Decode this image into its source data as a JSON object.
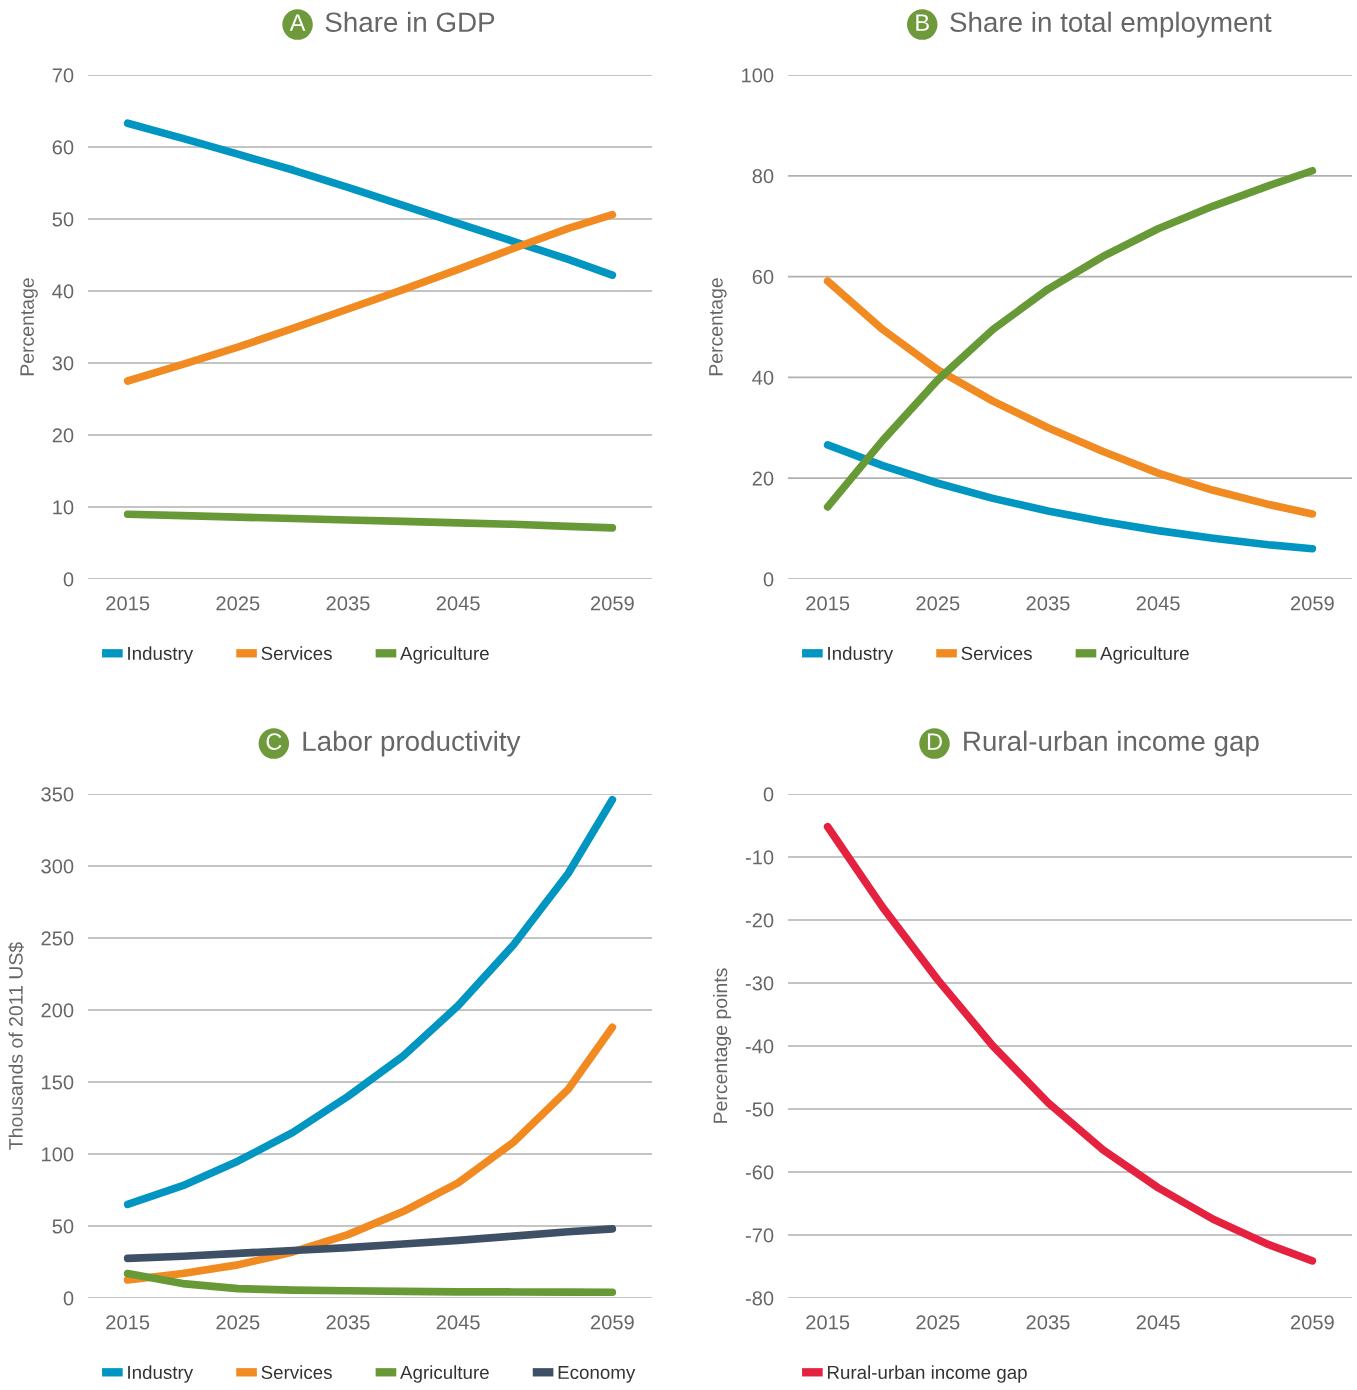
{
  "chart_data": [
    {
      "type": "line",
      "title": "A Share in GDP",
      "ylabel": "Percentage",
      "x": [
        2015,
        2020,
        2025,
        2030,
        2035,
        2040,
        2045,
        2050,
        2055,
        2059
      ],
      "xlim": [
        2011.4,
        2062.6
      ],
      "xticks": [
        2015,
        2025,
        2035,
        2045,
        2059
      ],
      "ylim": [
        0,
        70
      ],
      "yticks": [
        0,
        10,
        20,
        30,
        40,
        50,
        60,
        70
      ],
      "grid": "y",
      "legend": "bottom",
      "series": [
        {
          "name": "Industry",
          "color": "#0096c1",
          "values": [
            63.3,
            61.2,
            59.0,
            56.8,
            54.4,
            51.9,
            49.4,
            46.9,
            44.4,
            42.2
          ]
        },
        {
          "name": "Services",
          "color": "#f08a21",
          "values": [
            27.5,
            29.8,
            32.2,
            34.8,
            37.5,
            40.2,
            43.0,
            45.9,
            48.7,
            50.6
          ]
        },
        {
          "name": "Agriculture",
          "color": "#679a37",
          "values": [
            9.0,
            8.8,
            8.6,
            8.4,
            8.2,
            8.0,
            7.8,
            7.6,
            7.3,
            7.1
          ]
        }
      ]
    },
    {
      "type": "line",
      "title": "B Share in total employment",
      "ylabel": "Percentage",
      "x": [
        2015,
        2020,
        2025,
        2030,
        2035,
        2040,
        2045,
        2050,
        2055,
        2059
      ],
      "xlim": [
        2011.4,
        2062.6
      ],
      "xticks": [
        2015,
        2025,
        2035,
        2045,
        2059
      ],
      "ylim": [
        0,
        100
      ],
      "yticks": [
        0,
        20,
        40,
        60,
        80,
        100
      ],
      "grid": "y",
      "legend": "bottom",
      "series": [
        {
          "name": "Industry",
          "color": "#0096c1",
          "values": [
            26.6,
            22.5,
            19.0,
            16.0,
            13.5,
            11.4,
            9.6,
            8.1,
            6.8,
            6.0
          ]
        },
        {
          "name": "Services",
          "color": "#f08a21",
          "values": [
            59.1,
            49.5,
            41.5,
            35.3,
            30.0,
            25.3,
            21.0,
            17.6,
            14.8,
            12.9
          ]
        },
        {
          "name": "Agriculture",
          "color": "#679a37",
          "values": [
            14.3,
            27.5,
            39.5,
            49.5,
            57.5,
            64.0,
            69.5,
            74.0,
            78.0,
            81.0
          ]
        }
      ]
    },
    {
      "type": "line",
      "title": "C Labor productivity",
      "ylabel": "Thousands of 2011 US$",
      "x": [
        2015,
        2020,
        2025,
        2030,
        2035,
        2040,
        2045,
        2050,
        2055,
        2059
      ],
      "xlim": [
        2011.4,
        2062.6
      ],
      "xticks": [
        2015,
        2025,
        2035,
        2045,
        2059
      ],
      "ylim": [
        0,
        350
      ],
      "yticks": [
        0,
        50,
        100,
        150,
        200,
        250,
        300,
        350
      ],
      "grid": "y",
      "legend": "bottom",
      "series": [
        {
          "name": "Industry",
          "color": "#0096c1",
          "values": [
            65,
            78,
            95,
            115,
            140,
            168,
            203,
            245,
            295,
            346
          ]
        },
        {
          "name": "Services",
          "color": "#f08a21",
          "values": [
            12.5,
            17,
            23,
            32,
            44,
            60,
            80,
            108,
            145,
            188
          ]
        },
        {
          "name": "Agriculture",
          "color": "#679a37",
          "values": [
            17,
            10,
            6.5,
            5.5,
            5,
            4.6,
            4.3,
            4.2,
            4.1,
            4
          ]
        },
        {
          "name": "Economy",
          "color": "#3d5066",
          "values": [
            27.5,
            29,
            31,
            33,
            35,
            37.5,
            40,
            43,
            46,
            48
          ]
        }
      ]
    },
    {
      "type": "line",
      "title": "D Rural-urban income gap",
      "ylabel": "Percentage points",
      "x": [
        2015,
        2020,
        2025,
        2030,
        2035,
        2040,
        2045,
        2050,
        2055,
        2059
      ],
      "xlim": [
        2011.4,
        2062.6
      ],
      "xticks": [
        2015,
        2025,
        2035,
        2045,
        2059
      ],
      "ylim": [
        -80,
        0
      ],
      "yticks": [
        -80,
        -70,
        -60,
        -50,
        -40,
        -30,
        -20,
        -10,
        0
      ],
      "grid": "y",
      "legend": "bottom",
      "series": [
        {
          "name": "Rural-urban income gap",
          "color": "#e4223f",
          "values": [
            -5.2,
            -18,
            -29.5,
            -40,
            -49,
            -56.5,
            -62.5,
            -67.5,
            -71.5,
            -74.1
          ]
        }
      ]
    }
  ]
}
